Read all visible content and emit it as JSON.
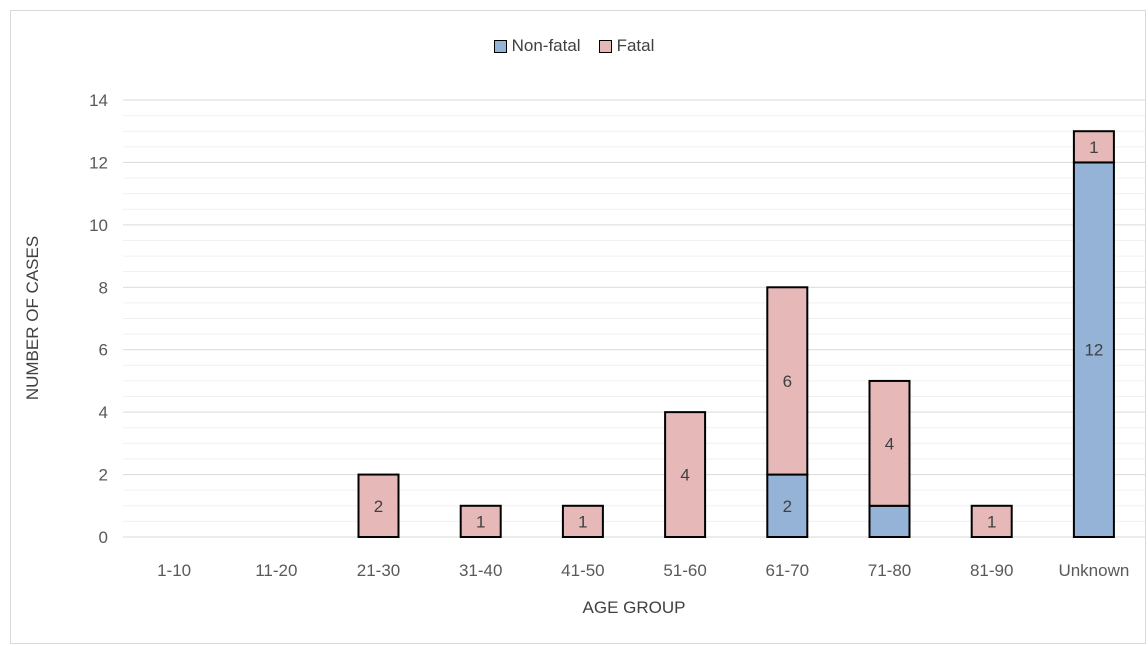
{
  "chart_data": {
    "type": "bar",
    "stacked": true,
    "categories": [
      "1-10",
      "11-20",
      "21-30",
      "31-40",
      "41-50",
      "51-60",
      "61-70",
      "71-80",
      "81-90",
      "Unknown"
    ],
    "series": [
      {
        "name": "Non-fatal",
        "color": "#95b3d7",
        "values": [
          0,
          0,
          0,
          0,
          0,
          0,
          2,
          1,
          0,
          12
        ],
        "labels": [
          "",
          "",
          "",
          "",
          "",
          "",
          "2",
          "",
          "",
          "12"
        ]
      },
      {
        "name": "Fatal",
        "color": "#e6b9b8",
        "values": [
          0,
          0,
          2,
          1,
          1,
          4,
          6,
          4,
          1,
          1
        ],
        "labels": [
          "",
          "",
          "2",
          "1",
          "1",
          "4",
          "6",
          "4",
          "1",
          "1"
        ]
      }
    ],
    "xlabel": "AGE GROUP",
    "ylabel": "NUMBER OF CASES",
    "ylim": [
      0,
      14
    ],
    "yticks": [
      "0",
      "2",
      "4",
      "6",
      "8",
      "10",
      "12",
      "14"
    ],
    "grid": true,
    "legend": "top-center"
  }
}
